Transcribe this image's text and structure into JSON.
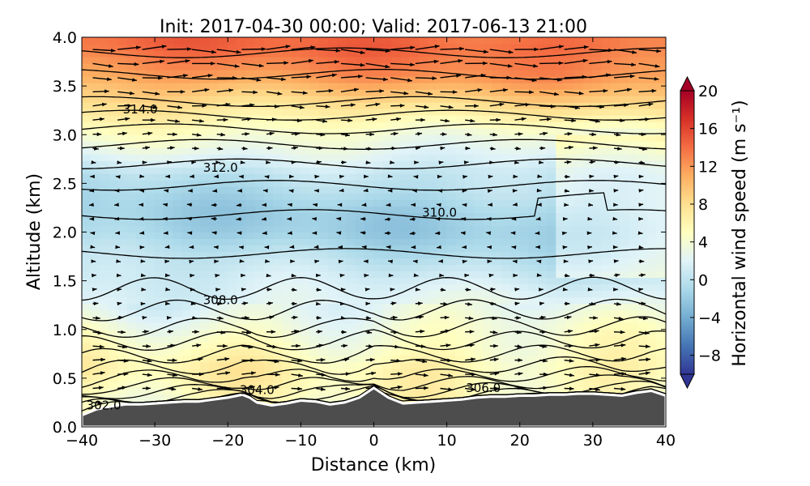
{
  "chart_data": {
    "type": "contour",
    "title": "Init: 2017-04-30 00:00; Valid: 2017-06-13 21:00",
    "xlabel": "Distance (km)",
    "ylabel": "Altitude (km)",
    "xlim": [
      -40,
      40
    ],
    "ylim": [
      0.0,
      4.0
    ],
    "x_ticks": [
      -40,
      -30,
      -20,
      -10,
      0,
      10,
      20,
      30,
      40
    ],
    "x_tick_labels": [
      "−40",
      "−30",
      "−20",
      "−10",
      "0",
      "10",
      "20",
      "30",
      "40"
    ],
    "y_ticks": [
      0.0,
      0.5,
      1.0,
      1.5,
      2.0,
      2.5,
      3.0,
      3.5,
      4.0
    ],
    "y_tick_labels": [
      "0.0",
      "0.5",
      "1.0",
      "1.5",
      "2.0",
      "2.5",
      "3.0",
      "3.5",
      "4.0"
    ],
    "colorbar": {
      "label": "Horizontal wind speed (m s⁻¹)",
      "range": [
        -10,
        20
      ],
      "ticks": [
        20,
        16,
        12,
        8,
        4,
        0,
        -4,
        -8
      ],
      "tick_labels": [
        "20",
        "16",
        "12",
        "8",
        "4",
        "0",
        "−4",
        "−8"
      ],
      "colormap": "RdYlBu_r",
      "colors": [
        "#313695",
        "#4575b4",
        "#74add1",
        "#abd9e9",
        "#e0f3f8",
        "#ffffbf",
        "#fee090",
        "#fdae61",
        "#f46d43",
        "#d73027",
        "#a50026"
      ]
    },
    "wind_speed_profile": {
      "altitude_km": [
        0.3,
        0.6,
        1.0,
        1.3,
        1.6,
        2.0,
        2.2,
        2.6,
        3.0,
        3.3,
        3.6,
        3.9
      ],
      "speed_ms": [
        5,
        6,
        4,
        2,
        0.5,
        -1.5,
        -1.5,
        0,
        4,
        8,
        12,
        14
      ]
    },
    "theta_contours": [
      {
        "label": "302.0",
        "x": -37,
        "y": 0.22
      },
      {
        "label": "304.0",
        "x": -16,
        "y": 0.38
      },
      {
        "label": "306.0",
        "x": 15,
        "y": 0.4
      },
      {
        "label": "308.0",
        "x": -21,
        "y": 1.3
      },
      {
        "label": "310.0",
        "x": 9,
        "y": 2.2
      },
      {
        "label": "312.0",
        "x": -21,
        "y": 2.66
      },
      {
        "label": "314.0",
        "x": -32,
        "y": 3.26
      }
    ],
    "terrain_color": "#4d4d4d",
    "terrain": {
      "x": [
        -40,
        -38,
        -36,
        -34,
        -32,
        -30,
        -28,
        -26,
        -24,
        -22,
        -20,
        -18,
        -17,
        -16,
        -14,
        -12,
        -10,
        -8,
        -6,
        -4,
        -2,
        0,
        1,
        2,
        4,
        6,
        8,
        10,
        12,
        14,
        16,
        18,
        20,
        22,
        24,
        26,
        28,
        30,
        32,
        34,
        36,
        38,
        40
      ],
      "y": [
        0.12,
        0.18,
        0.21,
        0.23,
        0.23,
        0.24,
        0.25,
        0.26,
        0.26,
        0.28,
        0.3,
        0.33,
        0.3,
        0.25,
        0.22,
        0.24,
        0.27,
        0.26,
        0.23,
        0.25,
        0.3,
        0.4,
        0.35,
        0.3,
        0.24,
        0.25,
        0.26,
        0.27,
        0.28,
        0.3,
        0.31,
        0.31,
        0.32,
        0.32,
        0.33,
        0.33,
        0.34,
        0.34,
        0.33,
        0.32,
        0.35,
        0.37,
        0.32
      ]
    }
  }
}
